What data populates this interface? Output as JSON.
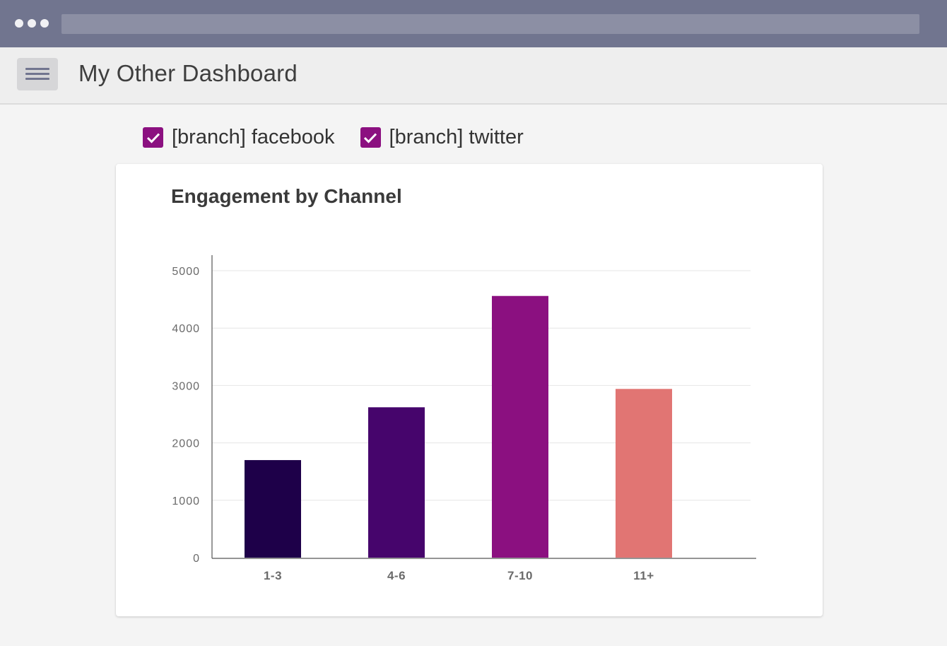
{
  "header": {
    "title": "My Other Dashboard"
  },
  "filters": [
    {
      "label": "[branch] facebook",
      "checked": true
    },
    {
      "label": "[branch] twitter",
      "checked": true
    }
  ],
  "colors": {
    "browser_bar": "#71758f",
    "accent": "#8b1080",
    "bars": [
      "#1e0049",
      "#46056c",
      "#8b1080",
      "#e17573"
    ]
  },
  "chart_data": {
    "type": "bar",
    "title": "Engagement by Channel",
    "xlabel": "",
    "ylabel": "",
    "categories": [
      "1-3",
      "4-6",
      "7-10",
      "11+"
    ],
    "values": [
      1700,
      2620,
      4560,
      2940
    ],
    "ylim": [
      0,
      5000
    ],
    "yticks": [
      0,
      1000,
      2000,
      3000,
      4000,
      5000
    ],
    "grid": true
  }
}
